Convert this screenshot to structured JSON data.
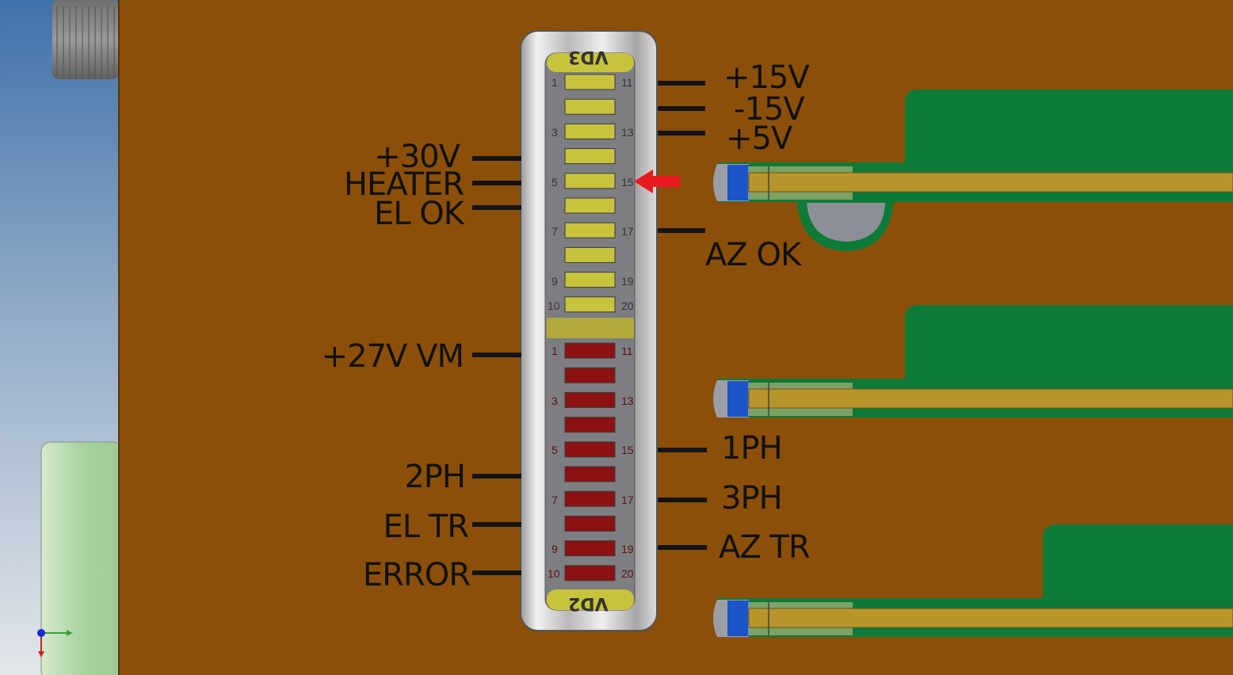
{
  "colors": {
    "board": "#8b4f09",
    "sky_top": "#4c7db2",
    "sky_bottom": "#dfe3e7",
    "green_module": "#0e7a38",
    "gold_rail": "#b7952b",
    "led_yellow": "#c8c33d",
    "led_red": "#8c1212",
    "bezel": "#d0d0d0",
    "indicator_arrow": "#e8191f"
  },
  "upper_bar": {
    "title": "VD3",
    "pins_left": [
      "1",
      "3",
      "5",
      "7",
      "9",
      "10"
    ],
    "pins_right": [
      "11",
      "13",
      "15",
      "17",
      "19",
      "20"
    ]
  },
  "lower_bar": {
    "title": "VD2",
    "pins_left": [
      "1",
      "3",
      "5",
      "7",
      "9",
      "10"
    ],
    "pins_right": [
      "11",
      "13",
      "15",
      "17",
      "19",
      "20"
    ]
  },
  "labels": {
    "p15v": "+15V",
    "m15v": "-15V",
    "p5v": "+5V",
    "p30v": "+30V",
    "heater": "HEATER",
    "el_ok": "EL OK",
    "az_ok": "AZ OK",
    "p27v_vm": "+27V VM",
    "ph1": "1PH",
    "ph2": "2PH",
    "ph3": "3PH",
    "el_tr": "EL TR",
    "az_tr": "AZ TR",
    "error": "ERROR"
  },
  "indicator": {
    "points_to_pin": "15",
    "icon": "red-arrow-left-icon"
  },
  "axis_triad": {
    "icon": "coordinate-axis-icon"
  }
}
